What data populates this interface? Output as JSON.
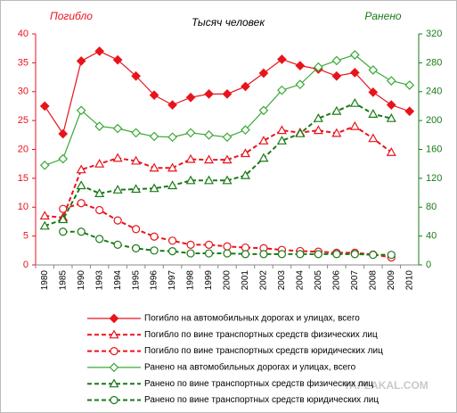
{
  "chart_data": {
    "type": "line",
    "title": "Тысяч человек",
    "left_label": "Погибло",
    "right_label": "Ранено",
    "watermark": "YAPLAKAL.COM",
    "categories": [
      "1980",
      "1985",
      "1990",
      "1993",
      "1994",
      "1995",
      "1996",
      "1997",
      "1998",
      "1999",
      "2000",
      "2001",
      "2002",
      "2003",
      "2004",
      "2005",
      "2006",
      "2007",
      "2008",
      "2009",
      "2010"
    ],
    "ylim": [
      0,
      40
    ],
    "yticks": [
      0,
      5,
      10,
      15,
      20,
      25,
      30,
      35,
      40
    ],
    "y2lim": [
      0,
      320
    ],
    "y2ticks": [
      0,
      40,
      80,
      120,
      160,
      200,
      240,
      280,
      320
    ],
    "grid": false,
    "series": [
      {
        "name": "Погибло на автомобильных дорогах и улицах, всего",
        "color": "#e8141c",
        "marker": "diamond",
        "dashed": false,
        "values": [
          27.5,
          22.7,
          35.3,
          37.0,
          35.5,
          32.7,
          29.4,
          27.7,
          29.0,
          29.6,
          29.6,
          30.9,
          33.2,
          35.6,
          34.5,
          33.9,
          32.7,
          33.3,
          29.9,
          27.7,
          26.6
        ]
      },
      {
        "name": "Погибло по вине транспортных средств физических лиц",
        "color": "#e8141c",
        "marker": "triangle",
        "dashed": true,
        "values": [
          8.5,
          8.2,
          16.5,
          17.5,
          18.5,
          18.0,
          16.8,
          16.8,
          18.3,
          18.2,
          18.2,
          19.3,
          21.5,
          23.3,
          22.9,
          23.3,
          22.8,
          24.0,
          21.9,
          19.5,
          null
        ]
      },
      {
        "name": "Погибло по вине транспортных средств юридических лиц",
        "color": "#e8141c",
        "marker": "circle",
        "dashed": true,
        "values": [
          null,
          9.7,
          10.7,
          9.5,
          7.7,
          6.2,
          4.9,
          4.2,
          3.5,
          3.5,
          3.2,
          3.0,
          2.9,
          2.6,
          2.4,
          2.3,
          2.1,
          2.1,
          1.8,
          1.3,
          null
        ]
      },
      {
        "name": "Ранено на автомобильных дорогах и улицах, всего",
        "color": "#3aa935",
        "marker": "diamond",
        "dashed": false,
        "axis": "y2",
        "values": [
          138,
          147,
          214,
          192,
          189,
          183,
          178,
          177,
          183,
          180,
          177,
          187,
          214,
          242,
          250,
          274,
          283,
          291,
          270,
          255,
          249
        ]
      },
      {
        "name": "Ранено по вине транспортных средств физических лиц",
        "color": "#1a7a17",
        "marker": "triangle",
        "dashed": true,
        "axis": "y2",
        "values": [
          54,
          63,
          110,
          99,
          104,
          105,
          106,
          110,
          117,
          117,
          117,
          124,
          148,
          172,
          182,
          203,
          213,
          224,
          209,
          203,
          null
        ]
      },
      {
        "name": "Ранено по вине транспортных средств юридических лиц",
        "color": "#1a7a17",
        "marker": "circle",
        "dashed": true,
        "axis": "y2",
        "values": [
          null,
          46,
          46,
          36,
          28,
          23,
          20,
          19,
          16,
          16,
          16,
          15,
          15,
          15,
          15,
          15,
          15,
          15,
          14,
          14,
          null
        ]
      }
    ]
  }
}
